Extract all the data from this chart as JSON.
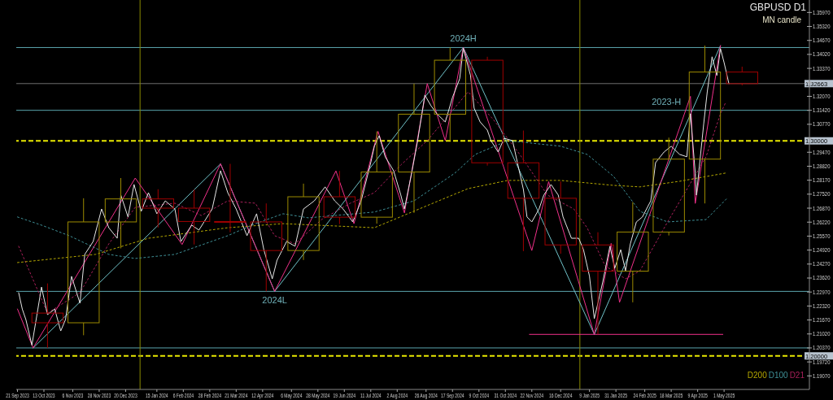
{
  "chart_data": {
    "type": "line",
    "title": "GBPUSD D1",
    "subtitle": "MN candle",
    "xlim": [
      "2023-09-20",
      "2025-07-11"
    ],
    "ylim": [
      1.1844,
      1.3655
    ],
    "xticks": [
      {
        "value": "2023-09-21",
        "label": "21 Sep 2023"
      },
      {
        "value": "2023-10-13",
        "label": "13 Oct 2023"
      },
      {
        "value": "2023-11-06",
        "label": "6 Nov 2023"
      },
      {
        "value": "2023-11-28",
        "label": "28 Nov 2023"
      },
      {
        "value": "2023-12-20",
        "label": "20 Dec 2023"
      },
      {
        "value": "2024-01-15",
        "label": "15 Jan 2024"
      },
      {
        "value": "2024-02-06",
        "label": "6 Feb 2024"
      },
      {
        "value": "2024-02-28",
        "label": "28 Feb 2024"
      },
      {
        "value": "2024-03-21",
        "label": "21 Mar 2024"
      },
      {
        "value": "2024-04-12",
        "label": "12 Apr 2024"
      },
      {
        "value": "2024-05-06",
        "label": "6 May 2024"
      },
      {
        "value": "2024-05-28",
        "label": "28 May 2024"
      },
      {
        "value": "2024-06-19",
        "label": "19 Jun 2024"
      },
      {
        "value": "2024-07-11",
        "label": "11 Jul 2024"
      },
      {
        "value": "2024-08-02",
        "label": "2 Aug 2024"
      },
      {
        "value": "2024-08-26",
        "label": "26 Aug 2024"
      },
      {
        "value": "2024-09-17",
        "label": "17 Sep 2024"
      },
      {
        "value": "2024-10-09",
        "label": "9 Oct 2024"
      },
      {
        "value": "2024-10-31",
        "label": "31 Oct 2024"
      },
      {
        "value": "2024-11-22",
        "label": "22 Nov 2024"
      },
      {
        "value": "2024-12-16",
        "label": "16 Dec 2024"
      },
      {
        "value": "2025-01-09",
        "label": "9 Jan 2025"
      },
      {
        "value": "2025-01-31",
        "label": "31 Jan 2025"
      },
      {
        "value": "2025-02-24",
        "label": "24 Feb 2025"
      },
      {
        "value": "2025-03-18",
        "label": "18 Mar 2025"
      },
      {
        "value": "2025-04-09",
        "label": "9 Apr 2025"
      },
      {
        "value": "2025-05-01",
        "label": "1 May 2025"
      }
    ],
    "yticks": [
      {
        "value": 1.1907,
        "label": "1.19070"
      },
      {
        "value": 1.1972,
        "label": "1.19720"
      },
      {
        "value": 1.2037,
        "label": "1.20370"
      },
      {
        "value": 1.2102,
        "label": "1.21020"
      },
      {
        "value": 1.2167,
        "label": "1.21670"
      },
      {
        "value": 1.2232,
        "label": "1.22320"
      },
      {
        "value": 1.2297,
        "label": "1.22970"
      },
      {
        "value": 1.2362,
        "label": "1.23620"
      },
      {
        "value": 1.2427,
        "label": "1.24270"
      },
      {
        "value": 1.2492,
        "label": "1.24920"
      },
      {
        "value": 1.2557,
        "label": "1.25570"
      },
      {
        "value": 1.2622,
        "label": "1.26220"
      },
      {
        "value": 1.2687,
        "label": "1.26870"
      },
      {
        "value": 1.2752,
        "label": "1.27520"
      },
      {
        "value": 1.2817,
        "label": "1.28170"
      },
      {
        "value": 1.2882,
        "label": "1.28820"
      },
      {
        "value": 1.2947,
        "label": "1.29470"
      },
      {
        "value": 1.3012,
        "label": null
      },
      {
        "value": 1.3077,
        "label": "1.30770"
      },
      {
        "value": 1.3142,
        "label": "1.31420"
      },
      {
        "value": 1.3207,
        "label": "1.32070"
      },
      {
        "value": 1.3272,
        "label": null
      },
      {
        "value": 1.3337,
        "label": "1.33370"
      },
      {
        "value": 1.3402,
        "label": "1.34020"
      },
      {
        "value": 1.3467,
        "label": "1.34670"
      },
      {
        "value": 1.3532,
        "label": "1.35320"
      },
      {
        "value": 1.3597,
        "label": "1.35970"
      }
    ],
    "legend": "bottom right",
    "series": [
      {
        "color": "#e6e6e6",
        "x": [
          "2023-09-22",
          "2023-09-25",
          "2023-09-28",
          "2023-10-03",
          "2023-10-08",
          "2023-10-11",
          "2023-10-16",
          "2023-10-22",
          "2023-10-27",
          "2023-10-31",
          "2023-11-05",
          "2023-11-12",
          "2023-11-16",
          "2023-11-23",
          "2023-11-30",
          "2023-12-06",
          "2023-12-13",
          "2023-12-16",
          "2023-12-22",
          "2023-12-27",
          "2024-01-02",
          "2024-01-08",
          "2024-01-15",
          "2024-01-22",
          "2024-01-30",
          "2024-02-04",
          "2024-02-13",
          "2024-02-19",
          "2024-03-01",
          "2024-03-08",
          "2024-03-14",
          "2024-03-21",
          "2024-03-30",
          "2024-04-07",
          "2024-04-13",
          "2024-04-20",
          "2024-04-24",
          "2024-05-02",
          "2024-05-09",
          "2024-05-16",
          "2024-05-25",
          "2024-06-03",
          "2024-06-11",
          "2024-06-18",
          "2024-06-26",
          "2024-07-03",
          "2024-07-11",
          "2024-07-14",
          "2024-07-18",
          "2024-07-23",
          "2024-07-30",
          "2024-08-05",
          "2024-08-08",
          "2024-08-14",
          "2024-08-19",
          "2024-08-25",
          "2024-08-30",
          "2024-09-04",
          "2024-09-11",
          "2024-09-17",
          "2024-09-23",
          "2024-09-26",
          "2024-10-02",
          "2024-10-05",
          "2024-10-10",
          "2024-10-16",
          "2024-10-19",
          "2024-10-25",
          "2024-10-30",
          "2024-11-06",
          "2024-11-10",
          "2024-11-15",
          "2024-11-18",
          "2024-11-22",
          "2024-11-28",
          "2024-12-02",
          "2024-12-08",
          "2024-12-14",
          "2024-12-18",
          "2024-12-25",
          "2024-12-31",
          "2025-01-04",
          "2025-01-09",
          "2025-01-13",
          "2025-01-16",
          "2025-01-20",
          "2025-01-26",
          "2025-01-30",
          "2025-02-04",
          "2025-02-08",
          "2025-02-12",
          "2025-02-17",
          "2025-02-22",
          "2025-03-01",
          "2025-03-05",
          "2025-03-12",
          "2025-03-18",
          "2025-03-25",
          "2025-03-31",
          "2025-04-03",
          "2025-04-07",
          "2025-04-08",
          "2025-04-14",
          "2025-04-17",
          "2025-04-21",
          "2025-04-25",
          "2025-04-28",
          "2025-05-01",
          "2025-05-05"
        ],
        "values": [
          1.2294,
          1.2218,
          1.2169,
          1.205,
          1.2218,
          1.232,
          1.2192,
          1.2218,
          1.2116,
          1.2169,
          1.237,
          1.2245,
          1.2472,
          1.2532,
          1.2683,
          1.2596,
          1.2547,
          1.2748,
          1.2646,
          1.2797,
          1.2672,
          1.2759,
          1.2661,
          1.2721,
          1.2683,
          1.2532,
          1.2608,
          1.2585,
          1.2683,
          1.2861,
          1.2759,
          1.2683,
          1.2559,
          1.2661,
          1.2494,
          1.2358,
          1.2445,
          1.2532,
          1.251,
          1.2683,
          1.2721,
          1.2786,
          1.2721,
          1.2683,
          1.2623,
          1.2721,
          1.2899,
          1.2975,
          1.3024,
          1.2926,
          1.2861,
          1.2748,
          1.2683,
          1.285,
          1.3001,
          1.3213,
          1.3164,
          1.3126,
          1.3088,
          1.3202,
          1.3289,
          1.343,
          1.3304,
          1.3152,
          1.3088,
          1.305,
          1.3001,
          1.2948,
          1.3012,
          1.3001,
          1.2899,
          1.2774,
          1.2646,
          1.2623,
          1.2683,
          1.2748,
          1.2797,
          1.2748,
          1.2646,
          1.2547,
          1.2547,
          1.2494,
          1.237,
          1.2173,
          1.2245,
          1.2343,
          1.251,
          1.2407,
          1.2494,
          1.2396,
          1.2521,
          1.2623,
          1.2646,
          1.2721,
          1.2899,
          1.2948,
          1.2975,
          1.2937,
          1.2926,
          1.3126,
          1.285,
          1.2748,
          1.3077,
          1.3228,
          1.3391,
          1.3304,
          1.3429,
          1.3364,
          1.3266
        ]
      },
      {
        "name": "D200",
        "type": "line",
        "color": "#b5a800",
        "line_style": "dotted",
        "x": [
          "2023-09-21",
          "2023-11-25",
          "2024-01-08",
          "2024-03-14",
          "2024-04-29",
          "2024-07-14",
          "2024-08-27",
          "2024-09-30",
          "2024-11-02",
          "2024-12-16",
          "2025-01-29",
          "2025-02-20",
          "2025-03-25",
          "2025-05-02"
        ],
        "values": [
          1.2434,
          1.2472,
          1.2547,
          1.2596,
          1.2615,
          1.2596,
          1.2699,
          1.2778,
          1.2816,
          1.2816,
          1.2793,
          1.2786,
          1.2812,
          1.285
        ]
      },
      {
        "name": "D100",
        "type": "line",
        "color": "#3f8f96",
        "line_style": "dotted",
        "x": [
          "2023-09-21",
          "2023-10-11",
          "2023-11-03",
          "2023-12-06",
          "2023-12-28",
          "2024-01-30",
          "2024-03-14",
          "2024-04-06",
          "2024-04-29",
          "2024-05-20",
          "2024-07-14",
          "2024-08-16",
          "2024-09-19",
          "2024-10-06",
          "2024-11-02",
          "2024-12-16",
          "2025-01-07",
          "2025-01-29",
          "2025-02-20",
          "2025-03-15",
          "2025-04-16",
          "2025-05-04"
        ],
        "values": [
          1.2646,
          1.2608,
          1.2559,
          1.2472,
          1.2453,
          1.2472,
          1.2559,
          1.2615,
          1.2661,
          1.2642,
          1.2669,
          1.2721,
          1.285,
          1.2937,
          1.3001,
          1.2975,
          1.2937,
          1.2835,
          1.2672,
          1.2623,
          1.2634,
          1.2736
        ]
      },
      {
        "name": "D21",
        "type": "line",
        "color": "#a8205a",
        "line_style": "dotted",
        "x": [
          "2023-09-22",
          "2023-10-16",
          "2023-11-12",
          "2023-12-06",
          "2023-12-28",
          "2024-01-30",
          "2024-02-21",
          "2024-03-14",
          "2024-04-06",
          "2024-04-22",
          "2024-05-09",
          "2024-05-31",
          "2024-06-24",
          "2024-07-14",
          "2024-08-05",
          "2024-08-27",
          "2024-09-30",
          "2024-10-21",
          "2024-11-12",
          "2024-12-05",
          "2024-12-27",
          "2025-01-07",
          "2025-01-22",
          "2025-02-08",
          "2025-02-20",
          "2025-03-15",
          "2025-04-16",
          "2025-04-28",
          "2025-05-02"
        ],
        "values": [
          1.251,
          1.2199,
          1.2294,
          1.2521,
          1.2691,
          1.271,
          1.2653,
          1.2721,
          1.271,
          1.2559,
          1.2521,
          1.2634,
          1.271,
          1.2759,
          1.2888,
          1.3001,
          1.3228,
          1.3099,
          1.2937,
          1.2748,
          1.2683,
          1.2596,
          1.2419,
          1.2358,
          1.2396,
          1.2623,
          1.2926,
          1.3126,
          1.3175
        ]
      },
      {
        "type": "line",
        "color": "#f0308a",
        "x": [
          "2023-09-21",
          "2023-10-04",
          "2023-12-28",
          "2024-02-05",
          "2024-03-08",
          "2024-04-22",
          "2024-06-12",
          "2024-06-27",
          "2024-07-17",
          "2024-08-08",
          "2024-08-27",
          "2024-09-11",
          "2024-09-26",
          "2024-11-22",
          "2024-12-06",
          "2025-01-13",
          "2025-01-27",
          "2025-02-03",
          "2025-04-03",
          "2025-04-07",
          "2025-04-28"
        ],
        "values": [
          1.2218,
          1.2037,
          1.2827,
          1.2518,
          1.2893,
          1.23,
          1.286,
          1.2615,
          1.3044,
          1.2665,
          1.3266,
          1.3001,
          1.3434,
          1.249,
          1.281,
          1.21,
          1.2523,
          1.2249,
          1.3207,
          1.2709,
          1.3443
        ]
      },
      {
        "type": "line",
        "color": "#6fc2c8",
        "x": [
          "2023-10-04",
          "2024-03-08",
          "2024-04-22",
          "2024-09-26",
          "2025-01-13",
          "2025-04-28"
        ],
        "values": [
          1.2037,
          1.2893,
          1.23,
          1.3434,
          1.21,
          1.3443
        ]
      },
      {
        "type": "line",
        "color": "#f0308a",
        "x": [
          "2024-11-20",
          "2025-04-30"
        ],
        "values": [
          1.21,
          1.21
        ]
      },
      {
        "type": "candlestick",
        "x": [
          "2023-10-16",
          "2023-11-15",
          "2023-12-16",
          "2024-01-16",
          "2024-02-15",
          "2024-03-16",
          "2024-04-15",
          "2024-05-16",
          "2024-06-15",
          "2024-07-16",
          "2024-08-16",
          "2024-09-15",
          "2024-10-16",
          "2024-11-15",
          "2024-12-16",
          "2025-01-16",
          "2025-02-14",
          "2025-03-16",
          "2025-04-15",
          "2025-05-16"
        ],
        "ohlc": [
          [
            1.2199,
            1.2337,
            1.2037,
            1.2154
          ],
          [
            1.2154,
            1.2733,
            1.2096,
            1.2623
          ],
          [
            1.2623,
            1.2827,
            1.25,
            1.273
          ],
          [
            1.273,
            1.2775,
            1.2597,
            1.2687
          ],
          [
            1.2687,
            1.2773,
            1.2518,
            1.2625
          ],
          [
            1.2625,
            1.2893,
            1.2575,
            1.2623
          ],
          [
            1.2623,
            1.2709,
            1.23,
            1.249
          ],
          [
            1.249,
            1.2801,
            1.2446,
            1.274
          ],
          [
            1.274,
            1.286,
            1.2613,
            1.2645
          ],
          [
            1.2645,
            1.3044,
            1.2615,
            1.2855
          ],
          [
            1.2855,
            1.3266,
            1.2665,
            1.3124
          ],
          [
            1.3124,
            1.3434,
            1.3001,
            1.3375
          ],
          [
            1.3375,
            1.3391,
            1.2885,
            1.2898
          ],
          [
            1.2898,
            1.3048,
            1.2487,
            1.2733
          ],
          [
            1.2733,
            1.2811,
            1.2475,
            1.2516
          ],
          [
            1.2516,
            1.2575,
            1.21,
            1.2394
          ],
          [
            1.2394,
            1.2715,
            1.2249,
            1.2576
          ],
          [
            1.2576,
            1.3015,
            1.256,
            1.2915
          ],
          [
            1.2915,
            1.3443,
            1.2709,
            1.332
          ],
          [
            1.332,
            1.3345,
            1.3258,
            1.3266
          ]
        ],
        "colors": [
          "#a00000",
          "#9c8a00",
          "#9c8a00",
          "#a00000",
          "#a00000",
          "#a00000",
          "#a00000",
          "#9c8a00",
          "#a00000",
          "#9c8a00",
          "#9c8a00",
          "#9c8a00",
          "#a00000",
          "#a00000",
          "#a00000",
          "#a00000",
          "#9c8a00",
          "#9c8a00",
          "#9c8a00",
          "#a00000"
        ]
      }
    ],
    "ref_lines": [
      {
        "axis": "y",
        "value": 1.3434,
        "color": "#5aa5ad"
      },
      {
        "axis": "y",
        "value": 1.32663,
        "label": "1.32663",
        "color": "#707070"
      },
      {
        "axis": "y",
        "value": 1.3142,
        "color": "#5aa5ad"
      },
      {
        "axis": "y",
        "value": 1.3,
        "label": "1.30000",
        "color": "#e8e800",
        "line_style": "dashed"
      },
      {
        "axis": "y",
        "value": 1.23,
        "color": "#5aa5ad"
      },
      {
        "axis": "y",
        "value": 1.2037,
        "color": "#5aa5ad"
      },
      {
        "axis": "y",
        "value": 1.2,
        "label": "1.20000",
        "color": "#e8e800",
        "line_style": "dashed"
      },
      {
        "axis": "x",
        "value": "2024-01-01",
        "color": "#8a8a00"
      },
      {
        "axis": "x",
        "value": "2025-01-01",
        "color": "#8a8a00"
      }
    ],
    "annotations": [
      {
        "text": "2024H",
        "x": "2024-09-26",
        "y": 1.3434
      },
      {
        "text": "2024L",
        "x": "2024-04-22",
        "y": 1.23
      },
      {
        "text": "2023-H",
        "x": "2025-03-14",
        "y": 1.3142
      }
    ]
  }
}
